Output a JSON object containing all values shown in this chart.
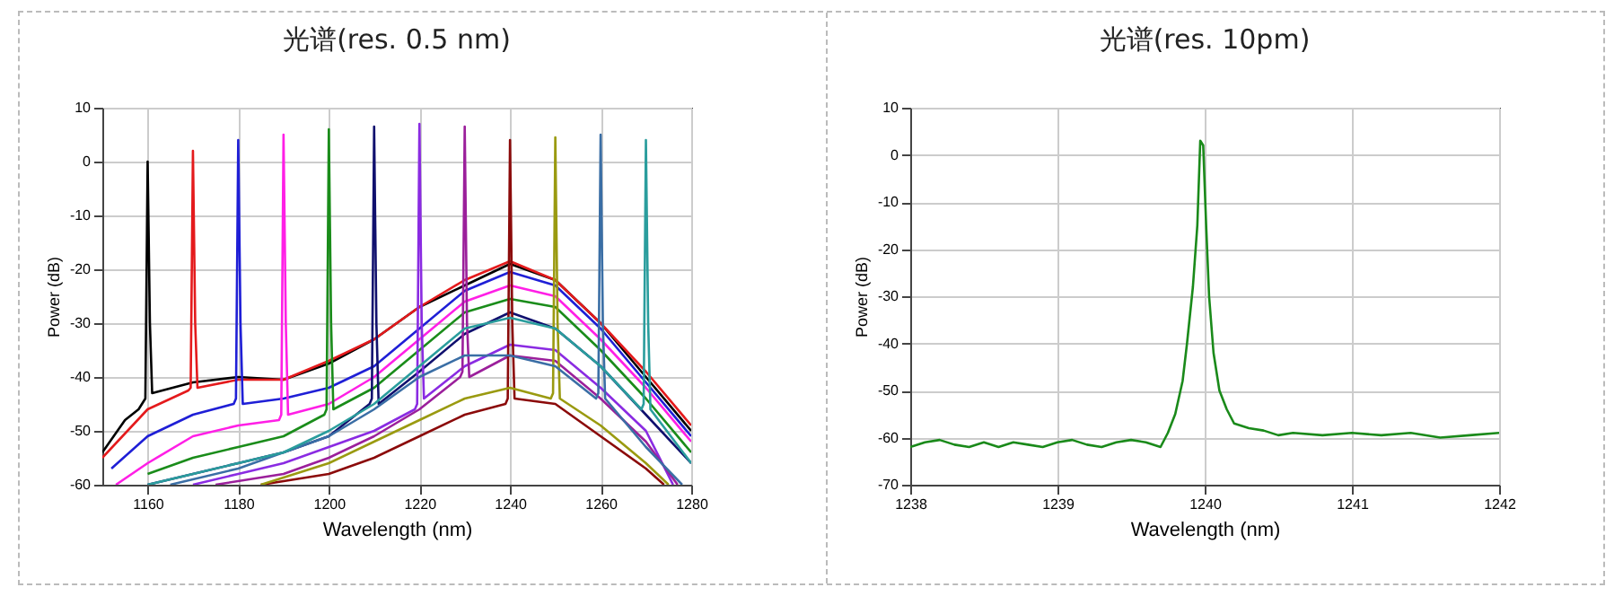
{
  "chart_data": [
    {
      "type": "line",
      "title": "光谱(res. 0.5 nm)",
      "xlabel": "Wavelength (nm)",
      "ylabel": "Power (dB)",
      "xlim": [
        1150,
        1280
      ],
      "xticks": [
        1160,
        1180,
        1200,
        1220,
        1240,
        1260,
        1280
      ],
      "ylim": [
        -60,
        10
      ],
      "yticks": [
        -60,
        -50,
        -40,
        -30,
        -20,
        -10,
        0,
        10
      ],
      "grid": true,
      "series": [
        {
          "color": "#000000",
          "x": [
            1150,
            1155,
            1158,
            1159.5,
            1160,
            1160.5,
            1161,
            1170,
            1180,
            1190,
            1200,
            1210,
            1220,
            1230,
            1240,
            1250,
            1260,
            1270,
            1280
          ],
          "values": [
            -54,
            -48,
            -46,
            -44,
            0,
            -30,
            -43,
            -41,
            -40,
            -40.5,
            -37.5,
            -33,
            -27,
            -23,
            -19,
            -22,
            -30,
            -40,
            -50
          ]
        },
        {
          "color": "#e41a1c",
          "x": [
            1150,
            1160,
            1169,
            1169.5,
            1170,
            1170.5,
            1171,
            1180,
            1190,
            1200,
            1210,
            1220,
            1230,
            1240,
            1250,
            1260,
            1270,
            1280
          ],
          "values": [
            -55,
            -46,
            -42.5,
            -42,
            2,
            -30,
            -42,
            -40.5,
            -40.5,
            -37,
            -33,
            -27,
            -22,
            -18.5,
            -22,
            -30,
            -39,
            -49
          ]
        },
        {
          "color": "#1f1fd6",
          "x": [
            1152,
            1160,
            1170,
            1179,
            1179.5,
            1180,
            1180.5,
            1181,
            1190,
            1200,
            1210,
            1220,
            1230,
            1240,
            1250,
            1260,
            1270,
            1280
          ],
          "values": [
            -57,
            -51,
            -47,
            -45,
            -44,
            4,
            -30,
            -45,
            -44,
            -42,
            -38,
            -31,
            -24,
            -20.5,
            -23,
            -31,
            -41,
            -51
          ]
        },
        {
          "color": "#ff1fe6",
          "x": [
            1153,
            1160,
            1170,
            1180,
            1189,
            1189.5,
            1190,
            1190.5,
            1191,
            1200,
            1210,
            1220,
            1230,
            1240,
            1250,
            1260,
            1270,
            1280
          ],
          "values": [
            -60,
            -56,
            -51,
            -49,
            -48,
            -47,
            5,
            -30,
            -47,
            -45,
            -40,
            -33,
            -26,
            -23,
            -25,
            -33,
            -42,
            -52
          ]
        },
        {
          "color": "#1a8c1a",
          "x": [
            1160,
            1170,
            1180,
            1190,
            1199,
            1199.5,
            1200,
            1200.5,
            1201,
            1210,
            1220,
            1230,
            1240,
            1250,
            1260,
            1270,
            1280
          ],
          "values": [
            -58,
            -55,
            -53,
            -51,
            -47,
            -46,
            6,
            -30,
            -46,
            -42,
            -35,
            -28,
            -25.5,
            -27,
            -35,
            -44,
            -54
          ]
        },
        {
          "color": "#10106e",
          "x": [
            1160,
            1170,
            1180,
            1190,
            1200,
            1209,
            1209.5,
            1210,
            1210.5,
            1211,
            1220,
            1230,
            1240,
            1250,
            1260,
            1270,
            1280
          ],
          "values": [
            -60,
            -58,
            -56,
            -54,
            -51,
            -45,
            -44,
            6.5,
            -30,
            -45,
            -39,
            -32,
            -28,
            -31,
            -38,
            -47,
            -56
          ]
        },
        {
          "color": "#8a2be2",
          "x": [
            1170,
            1180,
            1190,
            1200,
            1210,
            1219,
            1219.5,
            1220,
            1220.5,
            1221,
            1230,
            1240,
            1250,
            1260,
            1270,
            1276
          ],
          "values": [
            -60,
            -58,
            -56,
            -53,
            -50,
            -46,
            -45,
            7,
            -30,
            -44,
            -38,
            -34,
            -35,
            -42,
            -50,
            -60
          ]
        },
        {
          "color": "#9b1f9b",
          "x": [
            1175,
            1190,
            1200,
            1210,
            1220,
            1229,
            1229.5,
            1230,
            1230.5,
            1231,
            1240,
            1250,
            1260,
            1270,
            1277
          ],
          "values": [
            -60,
            -58,
            -55,
            -51,
            -46,
            -40,
            -39,
            6.5,
            -30,
            -40,
            -36,
            -37,
            -44,
            -52,
            -60
          ]
        },
        {
          "color": "#8b0a0a",
          "x": [
            1185,
            1200,
            1210,
            1220,
            1230,
            1239,
            1239.5,
            1240,
            1240.5,
            1241,
            1250,
            1260,
            1270,
            1274
          ],
          "values": [
            -60,
            -58,
            -55,
            -51,
            -47,
            -45,
            -44,
            4,
            -30,
            -44,
            -45,
            -51,
            -57,
            -60
          ]
        },
        {
          "color": "#9a9a10",
          "x": [
            1185,
            1200,
            1210,
            1220,
            1230,
            1240,
            1249,
            1249.5,
            1250,
            1250.5,
            1251,
            1260,
            1270,
            1275
          ],
          "values": [
            -60,
            -56,
            -52,
            -48,
            -44,
            -42,
            -44,
            -43,
            4.5,
            -30,
            -44,
            -49,
            -56,
            -60
          ]
        },
        {
          "color": "#3a6ea5",
          "x": [
            1165,
            1180,
            1190,
            1200,
            1210,
            1220,
            1230,
            1240,
            1250,
            1259,
            1259.5,
            1260,
            1260.5,
            1261,
            1270,
            1278
          ],
          "values": [
            -60,
            -57,
            -54,
            -51,
            -46,
            -40,
            -36,
            -36,
            -38,
            -44,
            -43,
            5,
            -30,
            -44,
            -53,
            -60
          ]
        },
        {
          "color": "#2a9d9d",
          "x": [
            1160,
            1170,
            1180,
            1190,
            1200,
            1210,
            1220,
            1230,
            1240,
            1250,
            1260,
            1269,
            1269.5,
            1270,
            1270.5,
            1271,
            1280
          ],
          "values": [
            -60,
            -58,
            -56,
            -54,
            -50,
            -45,
            -38,
            -31,
            -29,
            -31,
            -38,
            -46,
            -45,
            4,
            -30,
            -46,
            -56
          ]
        }
      ]
    },
    {
      "type": "line",
      "title": "光谱(res. 10pm)",
      "xlabel": "Wavelength (nm)",
      "ylabel": "Power (dB)",
      "xlim": [
        1238,
        1242
      ],
      "xticks": [
        1238,
        1239,
        1240,
        1241,
        1242
      ],
      "ylim": [
        -70,
        10
      ],
      "yticks": [
        -70,
        -60,
        -50,
        -40,
        -30,
        -20,
        -10,
        0,
        10
      ],
      "grid": true,
      "series": [
        {
          "color": "#1a8a1a",
          "x": [
            1238,
            1238.1,
            1238.2,
            1238.3,
            1238.4,
            1238.5,
            1238.6,
            1238.7,
            1238.8,
            1238.9,
            1239,
            1239.1,
            1239.2,
            1239.3,
            1239.4,
            1239.5,
            1239.6,
            1239.7,
            1239.75,
            1239.8,
            1239.85,
            1239.88,
            1239.92,
            1239.95,
            1239.97,
            1239.99,
            1240.01,
            1240.03,
            1240.06,
            1240.1,
            1240.15,
            1240.2,
            1240.3,
            1240.4,
            1240.5,
            1240.6,
            1240.8,
            1241,
            1241.2,
            1241.4,
            1241.6,
            1241.8,
            1242
          ],
          "values": [
            -62,
            -61,
            -60.5,
            -61.5,
            -62,
            -61,
            -62,
            -61,
            -61.5,
            -62,
            -61,
            -60.5,
            -61.5,
            -62,
            -61,
            -60.5,
            -61,
            -62,
            -59,
            -55,
            -48,
            -40,
            -28,
            -15,
            3,
            2,
            -15,
            -30,
            -42,
            -50,
            -54,
            -57,
            -58,
            -58.5,
            -59.5,
            -59,
            -59.5,
            -59,
            -59.5,
            -59,
            -60,
            -59.5,
            -59
          ]
        }
      ]
    }
  ]
}
